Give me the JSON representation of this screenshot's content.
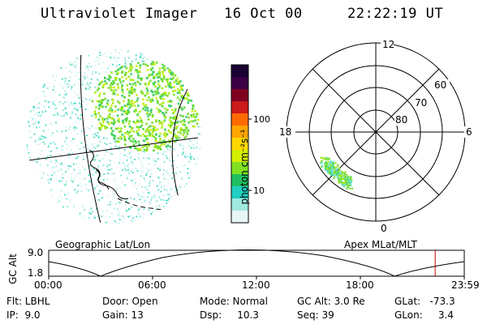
{
  "header": {
    "title": "Ultraviolet Imager",
    "date": "16 Oct 00",
    "time": "22:22:19 UT"
  },
  "colorbar": {
    "unit": "photon cm⁻²s⁻¹",
    "ticks": [
      "100",
      "10"
    ],
    "colors": [
      "#1a0033",
      "#3b0044",
      "#800020",
      "#cc1a1a",
      "#ff6a00",
      "#ffa500",
      "#ffd700",
      "#d4f000",
      "#80e020",
      "#20c060",
      "#20d0c0",
      "#a0e8e0",
      "#e8f6f6"
    ]
  },
  "polar_plot": {
    "mlt_labels": [
      "12",
      "18",
      "6",
      "0"
    ],
    "lat_labels": [
      "60",
      "70",
      "80"
    ]
  },
  "timeline": {
    "left_label": "Geographic Lat/Lon",
    "right_label": "Apex MLat/MLT",
    "axis_title": "GC Alt",
    "alt_ticks": [
      "9.0",
      "1.8"
    ],
    "hours": [
      "00:00",
      "06:00",
      "12:00",
      "18:00",
      "23:59"
    ],
    "marker_fraction": 0.93
  },
  "info": {
    "flt": "Flt: LBHL",
    "ip": "IP:  9.0",
    "door": "Door: Open",
    "gain": "Gain: 13",
    "mode": "Mode: Normal",
    "dsp": "Dsp:     10.3",
    "gcalt": "GC Alt: 3.0 Re",
    "seq": "Seq: 39",
    "glat": "GLat:   -73.3",
    "glon": "GLon:     3.4"
  }
}
